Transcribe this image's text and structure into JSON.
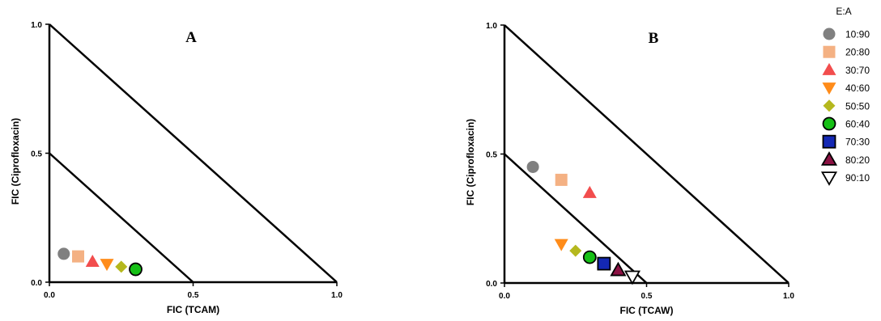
{
  "legend": {
    "title": "E:A",
    "entries": [
      {
        "label": "10:90",
        "marker": "circle",
        "color": "#808080"
      },
      {
        "label": "20:80",
        "marker": "square",
        "color": "#f4b183"
      },
      {
        "label": "30:70",
        "marker": "triangle-up",
        "color": "#f24d4d"
      },
      {
        "label": "40:60",
        "marker": "triangle-down",
        "color": "#ff8c1a"
      },
      {
        "label": "50:50",
        "marker": "diamond",
        "color": "#b5b81e"
      },
      {
        "label": "60:40",
        "marker": "circle-outlined",
        "color": "#16c016"
      },
      {
        "label": "70:30",
        "marker": "square-outlined",
        "color": "#1428b4"
      },
      {
        "label": "80:20",
        "marker": "triangle-up-outlined",
        "color": "#8b1243"
      },
      {
        "label": "90:10",
        "marker": "triangle-down-open",
        "color": "#ffffff"
      }
    ]
  },
  "chart_data": [
    {
      "type": "scatter",
      "panel_label": "A",
      "xlabel": "FIC (TCAM)",
      "ylabel": "FIC (Ciprofloxacin)",
      "xlim": [
        0,
        1.0
      ],
      "ylim": [
        0,
        1.0
      ],
      "xticks": [
        "0.0",
        "0.5",
        "1.0"
      ],
      "yticks": [
        "0.0",
        "0.5",
        "1.0"
      ],
      "reference_lines": [
        {
          "from": [
            0,
            0.5
          ],
          "to": [
            0.5,
            0
          ]
        },
        {
          "from": [
            0,
            1.0
          ],
          "to": [
            1.0,
            0
          ]
        }
      ],
      "series": [
        {
          "name": "10:90",
          "x": 0.05,
          "y": 0.11
        },
        {
          "name": "20:80",
          "x": 0.1,
          "y": 0.1
        },
        {
          "name": "30:70",
          "x": 0.15,
          "y": 0.08
        },
        {
          "name": "40:60",
          "x": 0.2,
          "y": 0.07
        },
        {
          "name": "50:50",
          "x": 0.25,
          "y": 0.06
        },
        {
          "name": "60:40",
          "x": 0.3,
          "y": 0.05
        }
      ]
    },
    {
      "type": "scatter",
      "panel_label": "B",
      "xlabel": "FIC (TCAW)",
      "ylabel": "FIC (Ciprofloxacin)",
      "xlim": [
        0,
        1.0
      ],
      "ylim": [
        0,
        1.0
      ],
      "xticks": [
        "0.0",
        "0.5",
        "1.0"
      ],
      "yticks": [
        "0.0",
        "0.5",
        "1.0"
      ],
      "reference_lines": [
        {
          "from": [
            0,
            0.5
          ],
          "to": [
            0.5,
            0
          ]
        },
        {
          "from": [
            0,
            1.0
          ],
          "to": [
            1.0,
            0
          ]
        }
      ],
      "series": [
        {
          "name": "10:90",
          "x": 0.1,
          "y": 0.45
        },
        {
          "name": "20:80",
          "x": 0.2,
          "y": 0.4
        },
        {
          "name": "30:70",
          "x": 0.3,
          "y": 0.35
        },
        {
          "name": "40:60",
          "x": 0.2,
          "y": 0.15
        },
        {
          "name": "50:50",
          "x": 0.25,
          "y": 0.125
        },
        {
          "name": "60:40",
          "x": 0.3,
          "y": 0.1
        },
        {
          "name": "70:30",
          "x": 0.35,
          "y": 0.075
        },
        {
          "name": "80:20",
          "x": 0.4,
          "y": 0.05
        },
        {
          "name": "90:10",
          "x": 0.45,
          "y": 0.025
        }
      ]
    }
  ]
}
